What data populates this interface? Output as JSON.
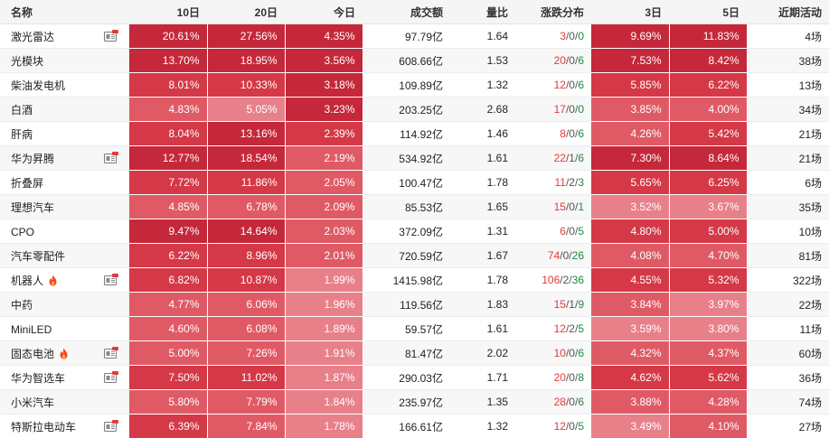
{
  "header": [
    "名称",
    "10日",
    "20日",
    "今日",
    "成交额",
    "量比",
    "涨跌分布",
    "3日",
    "5日",
    "近期活动"
  ],
  "rows": [
    {
      "name": "激光雷达",
      "d10": "20.61%",
      "d20": "27.56%",
      "today": "4.35%",
      "amount": "97.79亿",
      "ratio": "1.64",
      "up": "3",
      "flat": "0",
      "down": "0",
      "d3": "9.69%",
      "d5": "11.83%",
      "activity": "4场",
      "report": true,
      "fire": false
    },
    {
      "name": "光模块",
      "d10": "13.70%",
      "d20": "18.95%",
      "today": "3.56%",
      "amount": "608.66亿",
      "ratio": "1.53",
      "up": "20",
      "flat": "0",
      "down": "6",
      "d3": "7.53%",
      "d5": "8.42%",
      "activity": "38场",
      "report": false,
      "fire": false
    },
    {
      "name": "柴油发电机",
      "d10": "8.01%",
      "d20": "10.33%",
      "today": "3.18%",
      "amount": "109.89亿",
      "ratio": "1.32",
      "up": "12",
      "flat": "0",
      "down": "6",
      "d3": "5.85%",
      "d5": "6.22%",
      "activity": "13场",
      "report": false,
      "fire": false
    },
    {
      "name": "白酒",
      "d10": "4.83%",
      "d20": "5.05%",
      "today": "3.23%",
      "amount": "203.25亿",
      "ratio": "2.68",
      "up": "17",
      "flat": "0",
      "down": "0",
      "d3": "3.85%",
      "d5": "4.00%",
      "activity": "34场",
      "report": false,
      "fire": false
    },
    {
      "name": "肝病",
      "d10": "8.04%",
      "d20": "13.16%",
      "today": "2.39%",
      "amount": "114.92亿",
      "ratio": "1.46",
      "up": "8",
      "flat": "0",
      "down": "6",
      "d3": "4.26%",
      "d5": "5.42%",
      "activity": "21场",
      "report": false,
      "fire": false
    },
    {
      "name": "华为昇腾",
      "d10": "12.77%",
      "d20": "18.54%",
      "today": "2.19%",
      "amount": "534.92亿",
      "ratio": "1.61",
      "up": "22",
      "flat": "1",
      "down": "6",
      "d3": "7.30%",
      "d5": "8.64%",
      "activity": "21场",
      "report": true,
      "fire": false
    },
    {
      "name": "折叠屏",
      "d10": "7.72%",
      "d20": "11.86%",
      "today": "2.05%",
      "amount": "100.47亿",
      "ratio": "1.78",
      "up": "11",
      "flat": "2",
      "down": "3",
      "d3": "5.65%",
      "d5": "6.25%",
      "activity": "6场",
      "report": false,
      "fire": false
    },
    {
      "name": "理想汽车",
      "d10": "4.85%",
      "d20": "6.78%",
      "today": "2.09%",
      "amount": "85.53亿",
      "ratio": "1.65",
      "up": "15",
      "flat": "0",
      "down": "1",
      "d3": "3.52%",
      "d5": "3.67%",
      "activity": "35场",
      "report": false,
      "fire": false
    },
    {
      "name": "CPO",
      "d10": "9.47%",
      "d20": "14.64%",
      "today": "2.03%",
      "amount": "372.09亿",
      "ratio": "1.31",
      "up": "6",
      "flat": "0",
      "down": "5",
      "d3": "4.80%",
      "d5": "5.00%",
      "activity": "10场",
      "report": false,
      "fire": false
    },
    {
      "name": "汽车零配件",
      "d10": "6.22%",
      "d20": "8.96%",
      "today": "2.01%",
      "amount": "720.59亿",
      "ratio": "1.67",
      "up": "74",
      "flat": "0",
      "down": "26",
      "d3": "4.08%",
      "d5": "4.70%",
      "activity": "81场",
      "report": false,
      "fire": false
    },
    {
      "name": "机器人",
      "d10": "6.82%",
      "d20": "10.87%",
      "today": "1.99%",
      "amount": "1415.98亿",
      "ratio": "1.78",
      "up": "106",
      "flat": "2",
      "down": "36",
      "d3": "4.55%",
      "d5": "5.32%",
      "activity": "322场",
      "report": true,
      "fire": true
    },
    {
      "name": "中药",
      "d10": "4.77%",
      "d20": "6.06%",
      "today": "1.96%",
      "amount": "119.56亿",
      "ratio": "1.83",
      "up": "15",
      "flat": "1",
      "down": "9",
      "d3": "3.84%",
      "d5": "3.97%",
      "activity": "22场",
      "report": false,
      "fire": false
    },
    {
      "name": "MiniLED",
      "d10": "4.60%",
      "d20": "6.08%",
      "today": "1.89%",
      "amount": "59.57亿",
      "ratio": "1.61",
      "up": "12",
      "flat": "2",
      "down": "5",
      "d3": "3.59%",
      "d5": "3.80%",
      "activity": "11场",
      "report": false,
      "fire": false
    },
    {
      "name": "固态电池",
      "d10": "5.00%",
      "d20": "7.26%",
      "today": "1.91%",
      "amount": "81.47亿",
      "ratio": "2.02",
      "up": "10",
      "flat": "0",
      "down": "6",
      "d3": "4.32%",
      "d5": "4.37%",
      "activity": "60场",
      "report": true,
      "fire": true
    },
    {
      "name": "华为智选车",
      "d10": "7.50%",
      "d20": "11.02%",
      "today": "1.87%",
      "amount": "290.03亿",
      "ratio": "1.71",
      "up": "20",
      "flat": "0",
      "down": "8",
      "d3": "4.62%",
      "d5": "5.62%",
      "activity": "36场",
      "report": true,
      "fire": false
    },
    {
      "name": "小米汽车",
      "d10": "5.80%",
      "d20": "7.79%",
      "today": "1.84%",
      "amount": "235.97亿",
      "ratio": "1.35",
      "up": "28",
      "flat": "0",
      "down": "6",
      "d3": "3.88%",
      "d5": "4.28%",
      "activity": "74场",
      "report": false,
      "fire": false
    },
    {
      "name": "特斯拉电动车",
      "d10": "6.39%",
      "d20": "7.84%",
      "today": "1.78%",
      "amount": "166.61亿",
      "ratio": "1.32",
      "up": "12",
      "flat": "0",
      "down": "5",
      "d3": "3.49%",
      "d5": "4.10%",
      "activity": "27场",
      "report": true,
      "fire": false
    }
  ],
  "colors": {
    "heat_strong": "#c5283a",
    "heat_mid": "#d53847",
    "heat_light": "#e05a66",
    "heat_pale": "#e8808a",
    "up": "#e4393c",
    "down": "#1b8a3c"
  }
}
